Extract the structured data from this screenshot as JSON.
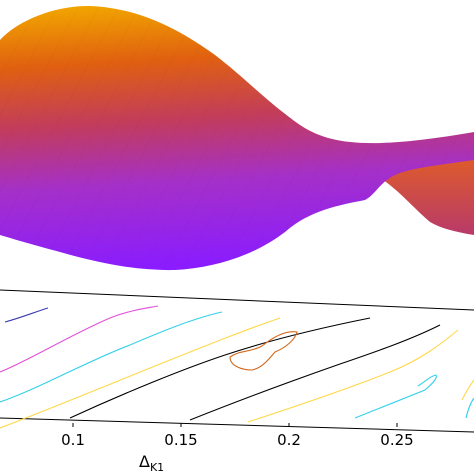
{
  "chart_data": {
    "type": "surface",
    "xlabel": "Δ",
    "xlabel_subscript": "K1",
    "x_ticks": [
      {
        "value": 0.1,
        "label": "0.1"
      },
      {
        "value": 0.15,
        "label": "0.15"
      },
      {
        "value": 0.2,
        "label": "0.2"
      },
      {
        "value": 0.25,
        "label": "0.25"
      }
    ],
    "surface_colors": {
      "high": "#f2a600",
      "mid_high": "#e06010",
      "mid": "#c23c5c",
      "mid_low": "#a530c8",
      "low": "#8a1cff"
    },
    "contour_colors": [
      "#000000",
      "#ffd84a",
      "#33d0e8",
      "#e050d8",
      "#3a3ab0",
      "#d2691e"
    ],
    "grid": false,
    "legend": "none"
  }
}
